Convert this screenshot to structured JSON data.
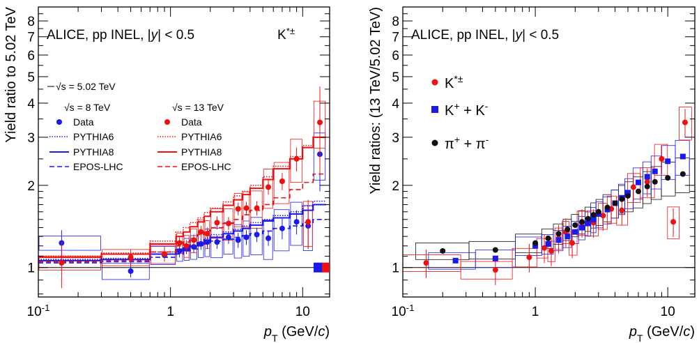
{
  "chart_data": [
    {
      "type": "scatter",
      "collab_label": "ALICE, pp INEL, |y| < 0.5",
      "particle_label": "K*±",
      "ylabel": "Yield ratio to 5.02 TeV",
      "xlabel": "pT (GeV/c)",
      "x_log": true,
      "y_log": true,
      "xlim": [
        0.1,
        16
      ],
      "ylim": [
        0.78,
        9
      ],
      "x_ticks": [
        "10^-1",
        "1",
        "10"
      ],
      "y_ticks": [
        "1",
        "2",
        "3",
        "4",
        "5",
        "6",
        "7",
        "8"
      ],
      "reference_label": "√s = 5.02 TeV",
      "legend_8tev_title": "√s = 8 TeV",
      "legend_13tev_title": "√s = 13 TeV",
      "legend_entries": [
        "Data",
        "PYTHIA6",
        "PYTHIA8",
        "EPOS-LHC"
      ],
      "x_bins": [
        0.1,
        0.3,
        0.7,
        1.1,
        1.25,
        1.4,
        1.6,
        1.8,
        2.0,
        2.5,
        3.0,
        3.5,
        4.0,
        5.0,
        6.0,
        8.0,
        10.0,
        12.0,
        15.0
      ],
      "series": [
        {
          "name": "√s = 8 TeV Data",
          "color": "#1a1aee",
          "x": [
            0.15,
            0.5,
            0.9,
            1.17,
            1.32,
            1.5,
            1.7,
            1.9,
            2.25,
            2.75,
            3.25,
            3.75,
            4.5,
            5.5,
            7.0,
            9.0,
            11.0,
            13.5
          ],
          "y": [
            1.23,
            0.97,
            1.11,
            1.15,
            1.17,
            1.19,
            1.22,
            1.24,
            1.24,
            1.29,
            1.26,
            1.29,
            1.32,
            1.28,
            1.39,
            1.47,
            1.42,
            2.6
          ],
          "err": [
            0.14,
            0.05,
            0.05,
            0.06,
            0.05,
            0.06,
            0.06,
            0.07,
            0.07,
            0.07,
            0.08,
            0.08,
            0.08,
            0.08,
            0.12,
            0.15,
            0.25,
            0.7
          ]
        },
        {
          "name": "√s = 13 TeV Data",
          "color": "#ee1111",
          "x": [
            0.15,
            0.5,
            0.9,
            1.17,
            1.32,
            1.5,
            1.7,
            1.9,
            2.25,
            2.75,
            3.25,
            3.75,
            4.5,
            5.5,
            7.0,
            9.0,
            11.0,
            13.5
          ],
          "y": [
            1.04,
            1.09,
            1.12,
            1.23,
            1.2,
            1.26,
            1.35,
            1.33,
            1.46,
            1.45,
            1.64,
            1.65,
            1.65,
            1.97,
            2.07,
            2.5,
            1.47,
            3.4
          ],
          "err": [
            0.2,
            0.07,
            0.07,
            0.06,
            0.06,
            0.06,
            0.07,
            0.07,
            0.08,
            0.08,
            0.09,
            0.09,
            0.1,
            0.12,
            0.15,
            0.25,
            0.3,
            1.2
          ]
        },
        {
          "name": "PYTHIA6 8 TeV",
          "color": "#1a1aee",
          "style": "dotted",
          "y": [
            1.07,
            1.08,
            1.14,
            1.17,
            1.19,
            1.21,
            1.24,
            1.28,
            1.32,
            1.35,
            1.38,
            1.42,
            1.46,
            1.5,
            1.55,
            1.6,
            1.68,
            1.75
          ]
        },
        {
          "name": "PYTHIA8 8 TeV",
          "color": "#1a1aee",
          "style": "solid",
          "y": [
            1.06,
            1.07,
            1.12,
            1.16,
            1.18,
            1.2,
            1.23,
            1.26,
            1.29,
            1.33,
            1.36,
            1.39,
            1.43,
            1.48,
            1.52,
            1.57,
            1.62,
            1.7
          ]
        },
        {
          "name": "EPOS-LHC 8 TeV",
          "color": "#1a1aee",
          "style": "dashed",
          "y": [
            1.04,
            1.05,
            1.09,
            1.12,
            1.15,
            1.17,
            1.2,
            1.22,
            1.25,
            1.27,
            1.29,
            1.31,
            1.33,
            1.36,
            1.39,
            1.42,
            1.46,
            1.5
          ]
        },
        {
          "name": "PYTHIA6 13 TeV",
          "color": "#ee1111",
          "style": "dotted",
          "y": [
            1.1,
            1.13,
            1.25,
            1.35,
            1.4,
            1.46,
            1.52,
            1.59,
            1.65,
            1.74,
            1.83,
            1.9,
            2.0,
            2.15,
            2.35,
            2.55,
            2.8,
            3.0
          ]
        },
        {
          "name": "PYTHIA8 13 TeV",
          "color": "#ee1111",
          "style": "solid",
          "y": [
            1.09,
            1.12,
            1.22,
            1.3,
            1.35,
            1.41,
            1.47,
            1.54,
            1.6,
            1.69,
            1.77,
            1.85,
            1.95,
            2.1,
            2.3,
            2.5,
            2.75,
            3.0
          ]
        },
        {
          "name": "EPOS-LHC 13 TeV",
          "color": "#ee1111",
          "style": "dashed",
          "y": [
            1.05,
            1.06,
            1.14,
            1.2,
            1.24,
            1.28,
            1.32,
            1.36,
            1.4,
            1.45,
            1.5,
            1.56,
            1.62,
            1.7,
            1.8,
            1.93,
            2.05,
            2.2
          ]
        }
      ]
    },
    {
      "type": "scatter",
      "collab_label": "ALICE, pp INEL, |y| < 0.5",
      "ylabel": "Yield ratios: (13 TeV/5.02 TeV)",
      "xlabel": "pT (GeV/c)",
      "x_log": true,
      "y_log": true,
      "xlim": [
        0.1,
        16
      ],
      "ylim": [
        0.78,
        9
      ],
      "x_ticks": [
        "10^-1",
        "1",
        "10"
      ],
      "y_ticks": [
        "1",
        "2",
        "3",
        "4",
        "5",
        "6",
        "7",
        "8"
      ],
      "legend_entries": [
        "K*±",
        "K+ + K-",
        "π+ + π-"
      ],
      "series": [
        {
          "name": "K*±",
          "color": "#ee1111",
          "marker": "circle",
          "x": [
            0.15,
            0.5,
            0.9,
            1.17,
            1.32,
            1.5,
            1.7,
            1.9,
            2.25,
            2.75,
            3.25,
            3.75,
            4.5,
            5.5,
            7.0,
            9.0,
            11.0,
            13.5
          ],
          "y": [
            1.04,
            0.98,
            1.09,
            1.18,
            1.15,
            1.28,
            1.35,
            1.23,
            1.46,
            1.46,
            1.55,
            1.64,
            1.62,
            1.97,
            2.06,
            2.5,
            1.47,
            3.4
          ]
        },
        {
          "name": "K+ + K-",
          "color": "#1a1aee",
          "marker": "square",
          "x": [
            0.25,
            0.5,
            1.0,
            1.25,
            1.5,
            1.75,
            2.0,
            2.25,
            2.5,
            2.75,
            3.0,
            3.5,
            4.0,
            4.5,
            5.0,
            6.0,
            7.0,
            8.0,
            10.0,
            13.0
          ],
          "y": [
            1.06,
            1.08,
            1.2,
            1.22,
            1.26,
            1.3,
            1.35,
            1.4,
            1.45,
            1.5,
            1.57,
            1.63,
            1.72,
            1.8,
            1.88,
            2.05,
            2.15,
            2.25,
            2.45,
            2.55
          ]
        },
        {
          "name": "π+ + π-",
          "color": "#111111",
          "marker": "circle",
          "x": [
            0.2,
            0.5,
            1.0,
            1.25,
            1.5,
            1.75,
            2.0,
            2.25,
            2.5,
            2.75,
            3.0,
            3.5,
            4.0,
            4.5,
            5.0,
            6.0,
            7.0,
            8.0,
            10.0,
            13.0
          ],
          "y": [
            1.15,
            1.16,
            1.23,
            1.28,
            1.33,
            1.38,
            1.43,
            1.47,
            1.51,
            1.56,
            1.6,
            1.66,
            1.72,
            1.78,
            1.83,
            1.9,
            1.98,
            2.06,
            2.13,
            2.2
          ]
        }
      ]
    }
  ]
}
